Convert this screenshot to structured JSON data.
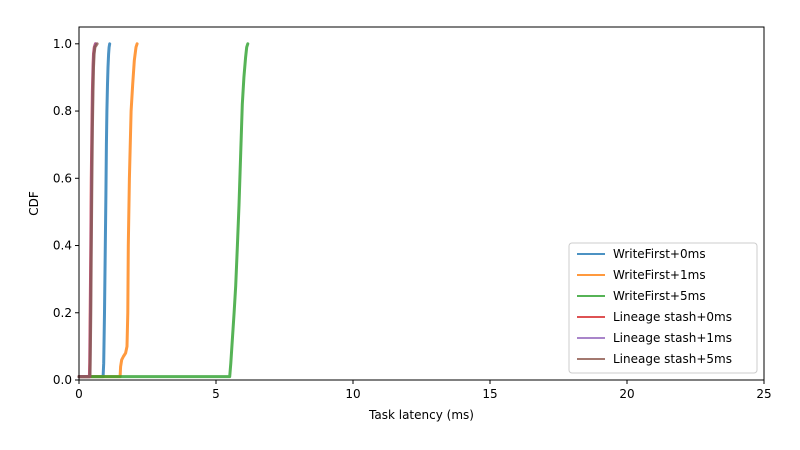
{
  "chart_data": {
    "type": "line",
    "title": "",
    "xlabel": "Task latency (ms)",
    "ylabel": "CDF",
    "xlim": [
      0,
      25
    ],
    "ylim": [
      0,
      1.05
    ],
    "xticks": [
      0,
      5,
      10,
      15,
      20,
      25
    ],
    "yticks": [
      0.0,
      0.2,
      0.4,
      0.6,
      0.8,
      1.0
    ],
    "ytick_labels": [
      "0.0",
      "0.2",
      "0.4",
      "0.6",
      "0.8",
      "1.0"
    ],
    "grid": false,
    "legend_position": "lower-right",
    "series": [
      {
        "name": "WriteFirst+0ms",
        "color": "#1f77b4",
        "x": [
          0.0,
          0.88,
          0.9,
          0.93,
          0.96,
          0.98,
          1.0,
          1.02,
          1.04,
          1.06,
          1.08,
          1.1,
          1.12
        ],
        "y": [
          0.01,
          0.01,
          0.05,
          0.2,
          0.4,
          0.55,
          0.7,
          0.8,
          0.88,
          0.93,
          0.97,
          0.99,
          1.0
        ]
      },
      {
        "name": "WriteFirst+1ms",
        "color": "#ff7f0e",
        "x": [
          0.0,
          1.5,
          1.52,
          1.56,
          1.62,
          1.7,
          1.75,
          1.78,
          1.8,
          1.84,
          1.9,
          1.96,
          2.02,
          2.08,
          2.12
        ],
        "y": [
          0.01,
          0.01,
          0.04,
          0.06,
          0.07,
          0.08,
          0.1,
          0.2,
          0.4,
          0.6,
          0.8,
          0.88,
          0.95,
          0.99,
          1.0
        ]
      },
      {
        "name": "WriteFirst+5ms",
        "color": "#2ca02c",
        "x": [
          0.0,
          5.5,
          5.54,
          5.58,
          5.62,
          5.66,
          5.72,
          5.78,
          5.84,
          5.88,
          5.92,
          5.96,
          6.02,
          6.08,
          6.12,
          6.16
        ],
        "y": [
          0.01,
          0.01,
          0.05,
          0.1,
          0.15,
          0.2,
          0.28,
          0.4,
          0.52,
          0.62,
          0.72,
          0.82,
          0.9,
          0.96,
          0.99,
          1.0
        ]
      },
      {
        "name": "Lineage stash+0ms",
        "color": "#d62728",
        "x": [
          0.0,
          0.38,
          0.39,
          0.41,
          0.43,
          0.45,
          0.47,
          0.49,
          0.51,
          0.53,
          0.56,
          0.6
        ],
        "y": [
          0.01,
          0.01,
          0.05,
          0.2,
          0.4,
          0.6,
          0.75,
          0.86,
          0.93,
          0.97,
          0.99,
          1.0
        ]
      },
      {
        "name": "Lineage stash+1ms",
        "color": "#9467bd",
        "x": [
          0.0,
          0.39,
          0.4,
          0.42,
          0.44,
          0.46,
          0.48,
          0.5,
          0.52,
          0.54,
          0.57,
          0.61
        ],
        "y": [
          0.01,
          0.01,
          0.05,
          0.2,
          0.4,
          0.6,
          0.75,
          0.86,
          0.93,
          0.97,
          0.99,
          1.0
        ]
      },
      {
        "name": "Lineage stash+5ms",
        "color": "#8c564b",
        "x": [
          0.0,
          0.4,
          0.41,
          0.43,
          0.45,
          0.47,
          0.49,
          0.51,
          0.53,
          0.55,
          0.58,
          0.62,
          0.66
        ],
        "y": [
          0.01,
          0.01,
          0.05,
          0.2,
          0.4,
          0.6,
          0.75,
          0.86,
          0.93,
          0.97,
          0.99,
          0.995,
          1.0
        ]
      }
    ]
  }
}
